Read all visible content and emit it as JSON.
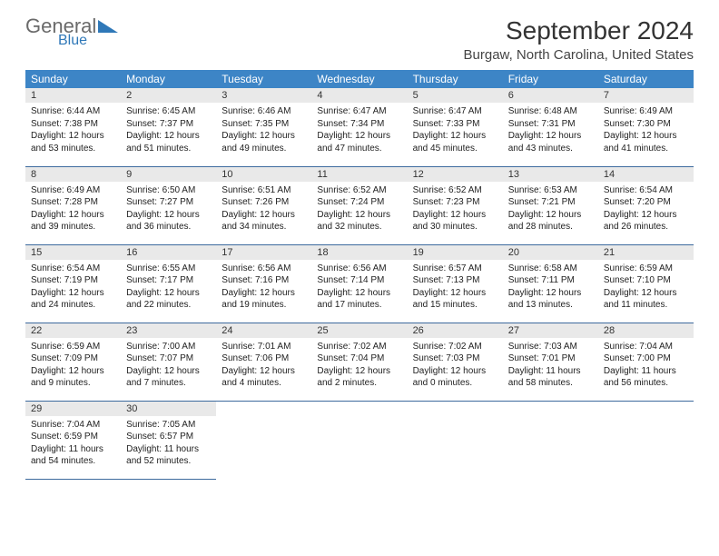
{
  "logo": {
    "text_general": "General",
    "text_blue": "Blue"
  },
  "title": "September 2024",
  "location": "Burgaw, North Carolina, United States",
  "colors": {
    "header_bg": "#3d85c6",
    "header_text": "#ffffff",
    "daynum_bg": "#e9e9e9",
    "row_divider": "#3d6a9e",
    "logo_accent": "#2f78b8"
  },
  "day_headers": [
    "Sunday",
    "Monday",
    "Tuesday",
    "Wednesday",
    "Thursday",
    "Friday",
    "Saturday"
  ],
  "weeks": [
    [
      {
        "n": "1",
        "sr": "Sunrise: 6:44 AM",
        "ss": "Sunset: 7:38 PM",
        "dl": "Daylight: 12 hours and 53 minutes."
      },
      {
        "n": "2",
        "sr": "Sunrise: 6:45 AM",
        "ss": "Sunset: 7:37 PM",
        "dl": "Daylight: 12 hours and 51 minutes."
      },
      {
        "n": "3",
        "sr": "Sunrise: 6:46 AM",
        "ss": "Sunset: 7:35 PM",
        "dl": "Daylight: 12 hours and 49 minutes."
      },
      {
        "n": "4",
        "sr": "Sunrise: 6:47 AM",
        "ss": "Sunset: 7:34 PM",
        "dl": "Daylight: 12 hours and 47 minutes."
      },
      {
        "n": "5",
        "sr": "Sunrise: 6:47 AM",
        "ss": "Sunset: 7:33 PM",
        "dl": "Daylight: 12 hours and 45 minutes."
      },
      {
        "n": "6",
        "sr": "Sunrise: 6:48 AM",
        "ss": "Sunset: 7:31 PM",
        "dl": "Daylight: 12 hours and 43 minutes."
      },
      {
        "n": "7",
        "sr": "Sunrise: 6:49 AM",
        "ss": "Sunset: 7:30 PM",
        "dl": "Daylight: 12 hours and 41 minutes."
      }
    ],
    [
      {
        "n": "8",
        "sr": "Sunrise: 6:49 AM",
        "ss": "Sunset: 7:28 PM",
        "dl": "Daylight: 12 hours and 39 minutes."
      },
      {
        "n": "9",
        "sr": "Sunrise: 6:50 AM",
        "ss": "Sunset: 7:27 PM",
        "dl": "Daylight: 12 hours and 36 minutes."
      },
      {
        "n": "10",
        "sr": "Sunrise: 6:51 AM",
        "ss": "Sunset: 7:26 PM",
        "dl": "Daylight: 12 hours and 34 minutes."
      },
      {
        "n": "11",
        "sr": "Sunrise: 6:52 AM",
        "ss": "Sunset: 7:24 PM",
        "dl": "Daylight: 12 hours and 32 minutes."
      },
      {
        "n": "12",
        "sr": "Sunrise: 6:52 AM",
        "ss": "Sunset: 7:23 PM",
        "dl": "Daylight: 12 hours and 30 minutes."
      },
      {
        "n": "13",
        "sr": "Sunrise: 6:53 AM",
        "ss": "Sunset: 7:21 PM",
        "dl": "Daylight: 12 hours and 28 minutes."
      },
      {
        "n": "14",
        "sr": "Sunrise: 6:54 AM",
        "ss": "Sunset: 7:20 PM",
        "dl": "Daylight: 12 hours and 26 minutes."
      }
    ],
    [
      {
        "n": "15",
        "sr": "Sunrise: 6:54 AM",
        "ss": "Sunset: 7:19 PM",
        "dl": "Daylight: 12 hours and 24 minutes."
      },
      {
        "n": "16",
        "sr": "Sunrise: 6:55 AM",
        "ss": "Sunset: 7:17 PM",
        "dl": "Daylight: 12 hours and 22 minutes."
      },
      {
        "n": "17",
        "sr": "Sunrise: 6:56 AM",
        "ss": "Sunset: 7:16 PM",
        "dl": "Daylight: 12 hours and 19 minutes."
      },
      {
        "n": "18",
        "sr": "Sunrise: 6:56 AM",
        "ss": "Sunset: 7:14 PM",
        "dl": "Daylight: 12 hours and 17 minutes."
      },
      {
        "n": "19",
        "sr": "Sunrise: 6:57 AM",
        "ss": "Sunset: 7:13 PM",
        "dl": "Daylight: 12 hours and 15 minutes."
      },
      {
        "n": "20",
        "sr": "Sunrise: 6:58 AM",
        "ss": "Sunset: 7:11 PM",
        "dl": "Daylight: 12 hours and 13 minutes."
      },
      {
        "n": "21",
        "sr": "Sunrise: 6:59 AM",
        "ss": "Sunset: 7:10 PM",
        "dl": "Daylight: 12 hours and 11 minutes."
      }
    ],
    [
      {
        "n": "22",
        "sr": "Sunrise: 6:59 AM",
        "ss": "Sunset: 7:09 PM",
        "dl": "Daylight: 12 hours and 9 minutes."
      },
      {
        "n": "23",
        "sr": "Sunrise: 7:00 AM",
        "ss": "Sunset: 7:07 PM",
        "dl": "Daylight: 12 hours and 7 minutes."
      },
      {
        "n": "24",
        "sr": "Sunrise: 7:01 AM",
        "ss": "Sunset: 7:06 PM",
        "dl": "Daylight: 12 hours and 4 minutes."
      },
      {
        "n": "25",
        "sr": "Sunrise: 7:02 AM",
        "ss": "Sunset: 7:04 PM",
        "dl": "Daylight: 12 hours and 2 minutes."
      },
      {
        "n": "26",
        "sr": "Sunrise: 7:02 AM",
        "ss": "Sunset: 7:03 PM",
        "dl": "Daylight: 12 hours and 0 minutes."
      },
      {
        "n": "27",
        "sr": "Sunrise: 7:03 AM",
        "ss": "Sunset: 7:01 PM",
        "dl": "Daylight: 11 hours and 58 minutes."
      },
      {
        "n": "28",
        "sr": "Sunrise: 7:04 AM",
        "ss": "Sunset: 7:00 PM",
        "dl": "Daylight: 11 hours and 56 minutes."
      }
    ],
    [
      {
        "n": "29",
        "sr": "Sunrise: 7:04 AM",
        "ss": "Sunset: 6:59 PM",
        "dl": "Daylight: 11 hours and 54 minutes."
      },
      {
        "n": "30",
        "sr": "Sunrise: 7:05 AM",
        "ss": "Sunset: 6:57 PM",
        "dl": "Daylight: 11 hours and 52 minutes."
      },
      null,
      null,
      null,
      null,
      null
    ]
  ]
}
